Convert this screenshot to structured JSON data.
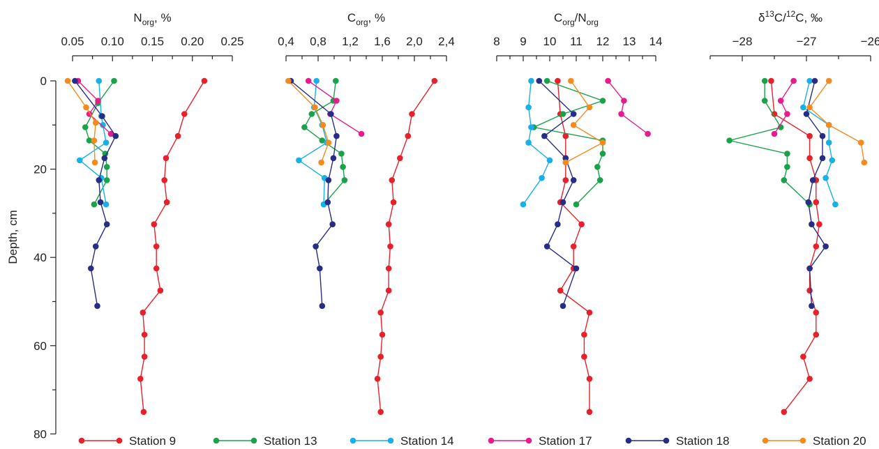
{
  "chart_data": {
    "type": "line",
    "ylabel": "Depth, cm",
    "y_ticks": [
      "0",
      "20",
      "40",
      "60",
      "80"
    ],
    "y_tick_values": [
      0,
      20,
      40,
      60,
      80
    ],
    "ylim": [
      0,
      80
    ],
    "y_inverted": true,
    "series_colors": {
      "Station 9": "#e8202a",
      "Station 13": "#1aa24a",
      "Station 14": "#19b0e8",
      "Station 17": "#e81a8c",
      "Station 18": "#262d86",
      "Station 20": "#f58a1f"
    },
    "legend": [
      {
        "name": "Station 9",
        "color": "#e8202a"
      },
      {
        "name": "Station 13",
        "color": "#1aa24a"
      },
      {
        "name": "Station 14",
        "color": "#19b0e8"
      },
      {
        "name": "Station 17",
        "color": "#e81a8c"
      },
      {
        "name": "Station 18",
        "color": "#262d86"
      },
      {
        "name": "Station 20",
        "color": "#f58a1f"
      }
    ],
    "legend_position": "bottom",
    "panels": [
      {
        "title_main": "N",
        "title_sub": "org",
        "title_after": ", %",
        "xlim": [
          0.05,
          0.25
        ],
        "x_ticks": [
          "0.05",
          "0.10",
          "0.15",
          "0.20",
          "0.25"
        ],
        "x_tick_values": [
          0.05,
          0.1,
          0.15,
          0.2,
          0.25
        ],
        "series": [
          {
            "name": "Station 9",
            "x": [
              0.215,
              0.19,
              0.182,
              0.167,
              0.165,
              0.168,
              0.152,
              0.155,
              0.155,
              0.16,
              0.138,
              0.14,
              0.14,
              0.135,
              0.139
            ],
            "y": [
              0,
              7.5,
              12.5,
              17.5,
              22.5,
              27.5,
              32.5,
              37.5,
              42.5,
              47.5,
              52.5,
              57.5,
              62.5,
              67.5,
              75
            ]
          },
          {
            "name": "Station 13",
            "x": [
              0.102,
              0.082,
              0.066,
              0.071,
              0.091,
              0.093,
              0.093,
              0.077
            ],
            "y": [
              0,
              5,
              10.5,
              13.5,
              16.5,
              19.5,
              22.5,
              28
            ]
          },
          {
            "name": "Station 14",
            "x": [
              0.083,
              0.086,
              0.088,
              0.092,
              0.059,
              0.086,
              0.092
            ],
            "y": [
              0,
              8,
              10,
              14,
              18,
              22,
              28
            ]
          },
          {
            "name": "Station 17",
            "x": [
              0.057,
              0.082,
              0.071,
              0.098
            ],
            "y": [
              0,
              4.5,
              7.5,
              12
            ]
          },
          {
            "name": "Station 18",
            "x": [
              0.053,
              0.087,
              0.104,
              0.09,
              0.083,
              0.085,
              0.093,
              0.079,
              0.073,
              0.081
            ],
            "y": [
              0,
              8,
              12.5,
              17.5,
              22.5,
              27.5,
              32.5,
              37.5,
              42.5,
              51
            ]
          },
          {
            "name": "Station 20",
            "x": [
              0.044,
              0.067,
              0.079,
              0.077,
              0.078
            ],
            "y": [
              0,
              6,
              9.5,
              13.5,
              18.5
            ]
          }
        ]
      },
      {
        "title_main": "C",
        "title_sub": "org",
        "title_after": ", %",
        "xlim": [
          0.4,
          2.4
        ],
        "x_ticks": [
          "0,4",
          "0,8",
          "1,2",
          "1,6",
          "2,0",
          "2,4"
        ],
        "x_tick_values": [
          0.4,
          0.8,
          1.2,
          1.6,
          2.0,
          2.4
        ],
        "series": [
          {
            "name": "Station 9",
            "x": [
              2.25,
              1.97,
              1.92,
              1.82,
              1.72,
              1.74,
              1.68,
              1.7,
              1.68,
              1.68,
              1.58,
              1.6,
              1.58,
              1.54,
              1.58
            ],
            "y": [
              0,
              7.5,
              12.5,
              17.5,
              22.5,
              27.5,
              32.5,
              37.5,
              42.5,
              47.5,
              52.5,
              57.5,
              62.5,
              67.5,
              75
            ]
          },
          {
            "name": "Station 13",
            "x": [
              1.02,
              0.99,
              0.72,
              0.63,
              0.85,
              1.09,
              1.11,
              1.13,
              0.87
            ],
            "y": [
              0,
              4.5,
              7.5,
              10.5,
              13.5,
              16.5,
              19.5,
              22.5,
              28
            ]
          },
          {
            "name": "Station 14",
            "x": [
              0.78,
              0.75,
              0.85,
              0.91,
              0.56,
              0.88,
              0.87
            ],
            "y": [
              0,
              6,
              10,
              14,
              18,
              22,
              28
            ]
          },
          {
            "name": "Station 17",
            "x": [
              0.68,
              1.03,
              0.95,
              1.34
            ],
            "y": [
              0,
              4.5,
              7.5,
              12
            ]
          },
          {
            "name": "Station 18",
            "x": [
              0.46,
              0.96,
              1.03,
              0.99,
              0.93,
              0.92,
              0.98,
              0.77,
              0.82,
              0.85
            ],
            "y": [
              0,
              7.5,
              12.5,
              17.5,
              22.5,
              27.5,
              32.5,
              37.5,
              42.5,
              51
            ]
          },
          {
            "name": "Station 20",
            "x": [
              0.43,
              0.76,
              0.86,
              0.93,
              0.84
            ],
            "y": [
              0,
              6,
              10,
              14,
              18.5
            ]
          }
        ]
      },
      {
        "title_main": "C",
        "title_sub": "org",
        "title_mid": "/N",
        "title_sub2": "org",
        "title_after": "",
        "xlim": [
          8,
          14
        ],
        "x_ticks": [
          "8",
          "9",
          "10",
          "11",
          "12",
          "13",
          "14"
        ],
        "x_tick_values": [
          8,
          9,
          10,
          11,
          12,
          13,
          14
        ],
        "series": [
          {
            "name": "Station 9",
            "x": [
              10.3,
              10.4,
              10.6,
              10.6,
              10.6,
              10.4,
              11.2,
              10.9,
              10.9,
              10.4,
              11.5,
              11.3,
              11.3,
              11.5,
              11.5
            ],
            "y": [
              0,
              7.5,
              12.5,
              17.5,
              22.5,
              27.5,
              32.5,
              37.5,
              42.5,
              47.5,
              52.5,
              57.5,
              62.5,
              67.5,
              75
            ]
          },
          {
            "name": "Station 13",
            "x": [
              9.9,
              12.0,
              10.5,
              9.4,
              12.0,
              12.0,
              11.8,
              11.9,
              11.0
            ],
            "y": [
              0,
              4.5,
              7.5,
              10.5,
              13.5,
              16.5,
              19.5,
              22.5,
              28
            ]
          },
          {
            "name": "Station 14",
            "x": [
              9.3,
              9.2,
              9.3,
              9.2,
              10.0,
              9.7,
              9.0
            ],
            "y": [
              0,
              6,
              10.5,
              14,
              18,
              22,
              28
            ]
          },
          {
            "name": "Station 17",
            "x": [
              12.2,
              12.8,
              12.7,
              13.7
            ],
            "y": [
              0,
              4.5,
              7.5,
              12
            ]
          },
          {
            "name": "Station 18",
            "x": [
              9.6,
              10.9,
              9.8,
              10.6,
              10.9,
              10.5,
              10.3,
              9.9,
              11.0,
              10.5
            ],
            "y": [
              0,
              7.5,
              12.5,
              17.5,
              22.5,
              27.5,
              32.5,
              37.5,
              42.5,
              51
            ]
          },
          {
            "name": "Station 20",
            "x": [
              10.8,
              11.5,
              10.9,
              12.0,
              10.6
            ],
            "y": [
              0,
              6,
              10,
              14,
              18.5
            ]
          }
        ]
      },
      {
        "title_pre": "δ",
        "title_sup": "13",
        "title_main": "C/",
        "title_sup2": "12",
        "title_after": "C, ‰",
        "xlim": [
          -28.5,
          -26
        ],
        "x_ticks": [
          "−28",
          "−27",
          "−26"
        ],
        "x_tick_values": [
          -28,
          -27,
          -26
        ],
        "series": [
          {
            "name": "Station 9",
            "x": [
              -27.55,
              -27.5,
              -26.95,
              -26.95,
              -26.85,
              -26.85,
              -26.8,
              -26.85,
              -26.95,
              -26.95,
              -26.85,
              -26.85,
              -27.05,
              -26.95,
              -27.35
            ],
            "y": [
              0,
              7.5,
              12.5,
              17.5,
              22.5,
              27.5,
              32.5,
              37.5,
              42.5,
              47.5,
              52.5,
              57.5,
              62.5,
              67.5,
              75
            ]
          },
          {
            "name": "Station 13",
            "x": [
              -27.65,
              -27.65,
              -27.4,
              -28.2,
              -27.3,
              -27.3,
              -27.35,
              -26.95
            ],
            "y": [
              0,
              4.5,
              10.5,
              13.5,
              16.5,
              19.5,
              22.5,
              28
            ]
          },
          {
            "name": "Station 14",
            "x": [
              -26.95,
              -27.05,
              -26.65,
              -26.65,
              -26.6,
              -26.7,
              -26.55
            ],
            "y": [
              0,
              6,
              10,
              14,
              18,
              22,
              28
            ]
          },
          {
            "name": "Station 17",
            "x": [
              -27.2,
              -27.4,
              -27.3,
              -27.5
            ],
            "y": [
              0,
              4.5,
              7.5,
              12
            ]
          },
          {
            "name": "Station 18",
            "x": [
              -26.87,
              -27.0,
              -26.75,
              -26.75,
              -26.9,
              -26.97,
              -26.92,
              -26.7,
              -26.95,
              -26.92
            ],
            "y": [
              0,
              7.5,
              12.5,
              17.5,
              22.5,
              27.5,
              32.5,
              37.5,
              42.5,
              51
            ]
          },
          {
            "name": "Station 20",
            "x": [
              -26.65,
              -26.95,
              -26.65,
              -26.15,
              -26.1
            ],
            "y": [
              0,
              6,
              10,
              14,
              18.5
            ]
          }
        ]
      }
    ]
  }
}
